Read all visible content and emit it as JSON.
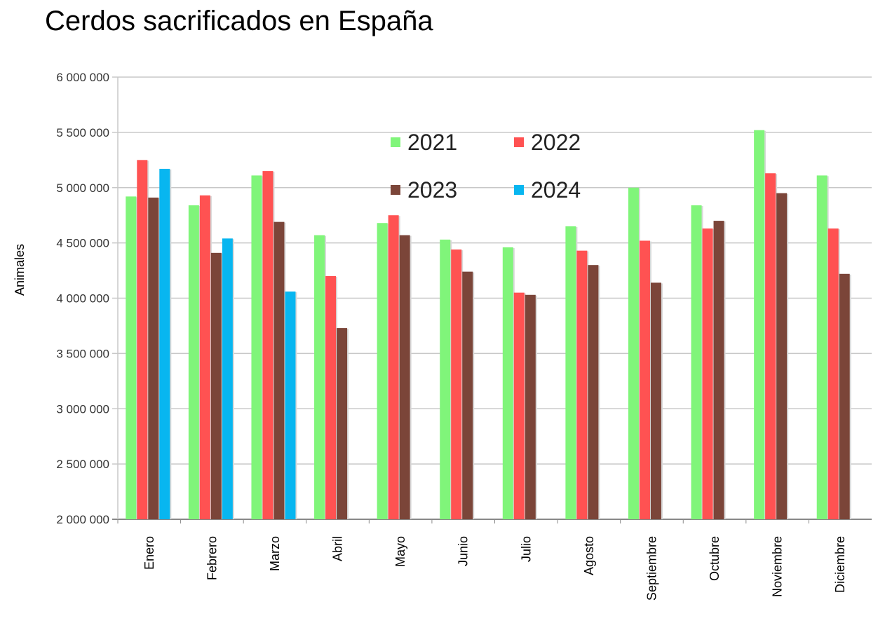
{
  "title": "Cerdos sacrificados en España",
  "colors": {
    "2021": "#80f57a",
    "2022": "#ff5252",
    "2023": "#7b4539",
    "2024": "#08b6f0",
    "grid": "#c8c8c8",
    "axis": "#888888"
  },
  "chart_data": {
    "type": "bar",
    "title": "Cerdos sacrificados en España",
    "xlabel": "",
    "ylabel": "Animales",
    "ylim": [
      2000000,
      6000000
    ],
    "yticks": [
      2000000,
      2500000,
      3000000,
      3500000,
      4000000,
      4500000,
      5000000,
      5500000,
      6000000
    ],
    "ytick_labels": [
      "2 000 000",
      "2 500 000",
      "3 000 000",
      "3 500 000",
      "4 000 000",
      "4 500 000",
      "5 000 000",
      "5 500 000",
      "6 000 000"
    ],
    "grid": true,
    "legend_position": "top-center",
    "categories": [
      "Enero",
      "Febrero",
      "Marzo",
      "Abril",
      "Mayo",
      "Junio",
      "Julio",
      "Agosto",
      "Septiembre",
      "Octubre",
      "Noviembre",
      "Diciembre"
    ],
    "series": [
      {
        "name": "2021",
        "values": [
          4920000,
          4840000,
          5110000,
          4570000,
          4680000,
          4530000,
          4460000,
          4650000,
          5000000,
          4840000,
          5520000,
          5110000
        ]
      },
      {
        "name": "2022",
        "values": [
          5250000,
          4930000,
          5150000,
          4200000,
          4750000,
          4440000,
          4050000,
          4430000,
          4520000,
          4630000,
          5130000,
          4630000
        ]
      },
      {
        "name": "2023",
        "values": [
          4910000,
          4410000,
          4690000,
          3730000,
          4570000,
          4240000,
          4030000,
          4300000,
          4140000,
          4700000,
          4950000,
          4220000
        ]
      },
      {
        "name": "2024",
        "values": [
          5170000,
          4540000,
          4060000,
          null,
          null,
          null,
          null,
          null,
          null,
          null,
          null,
          null
        ]
      }
    ]
  }
}
